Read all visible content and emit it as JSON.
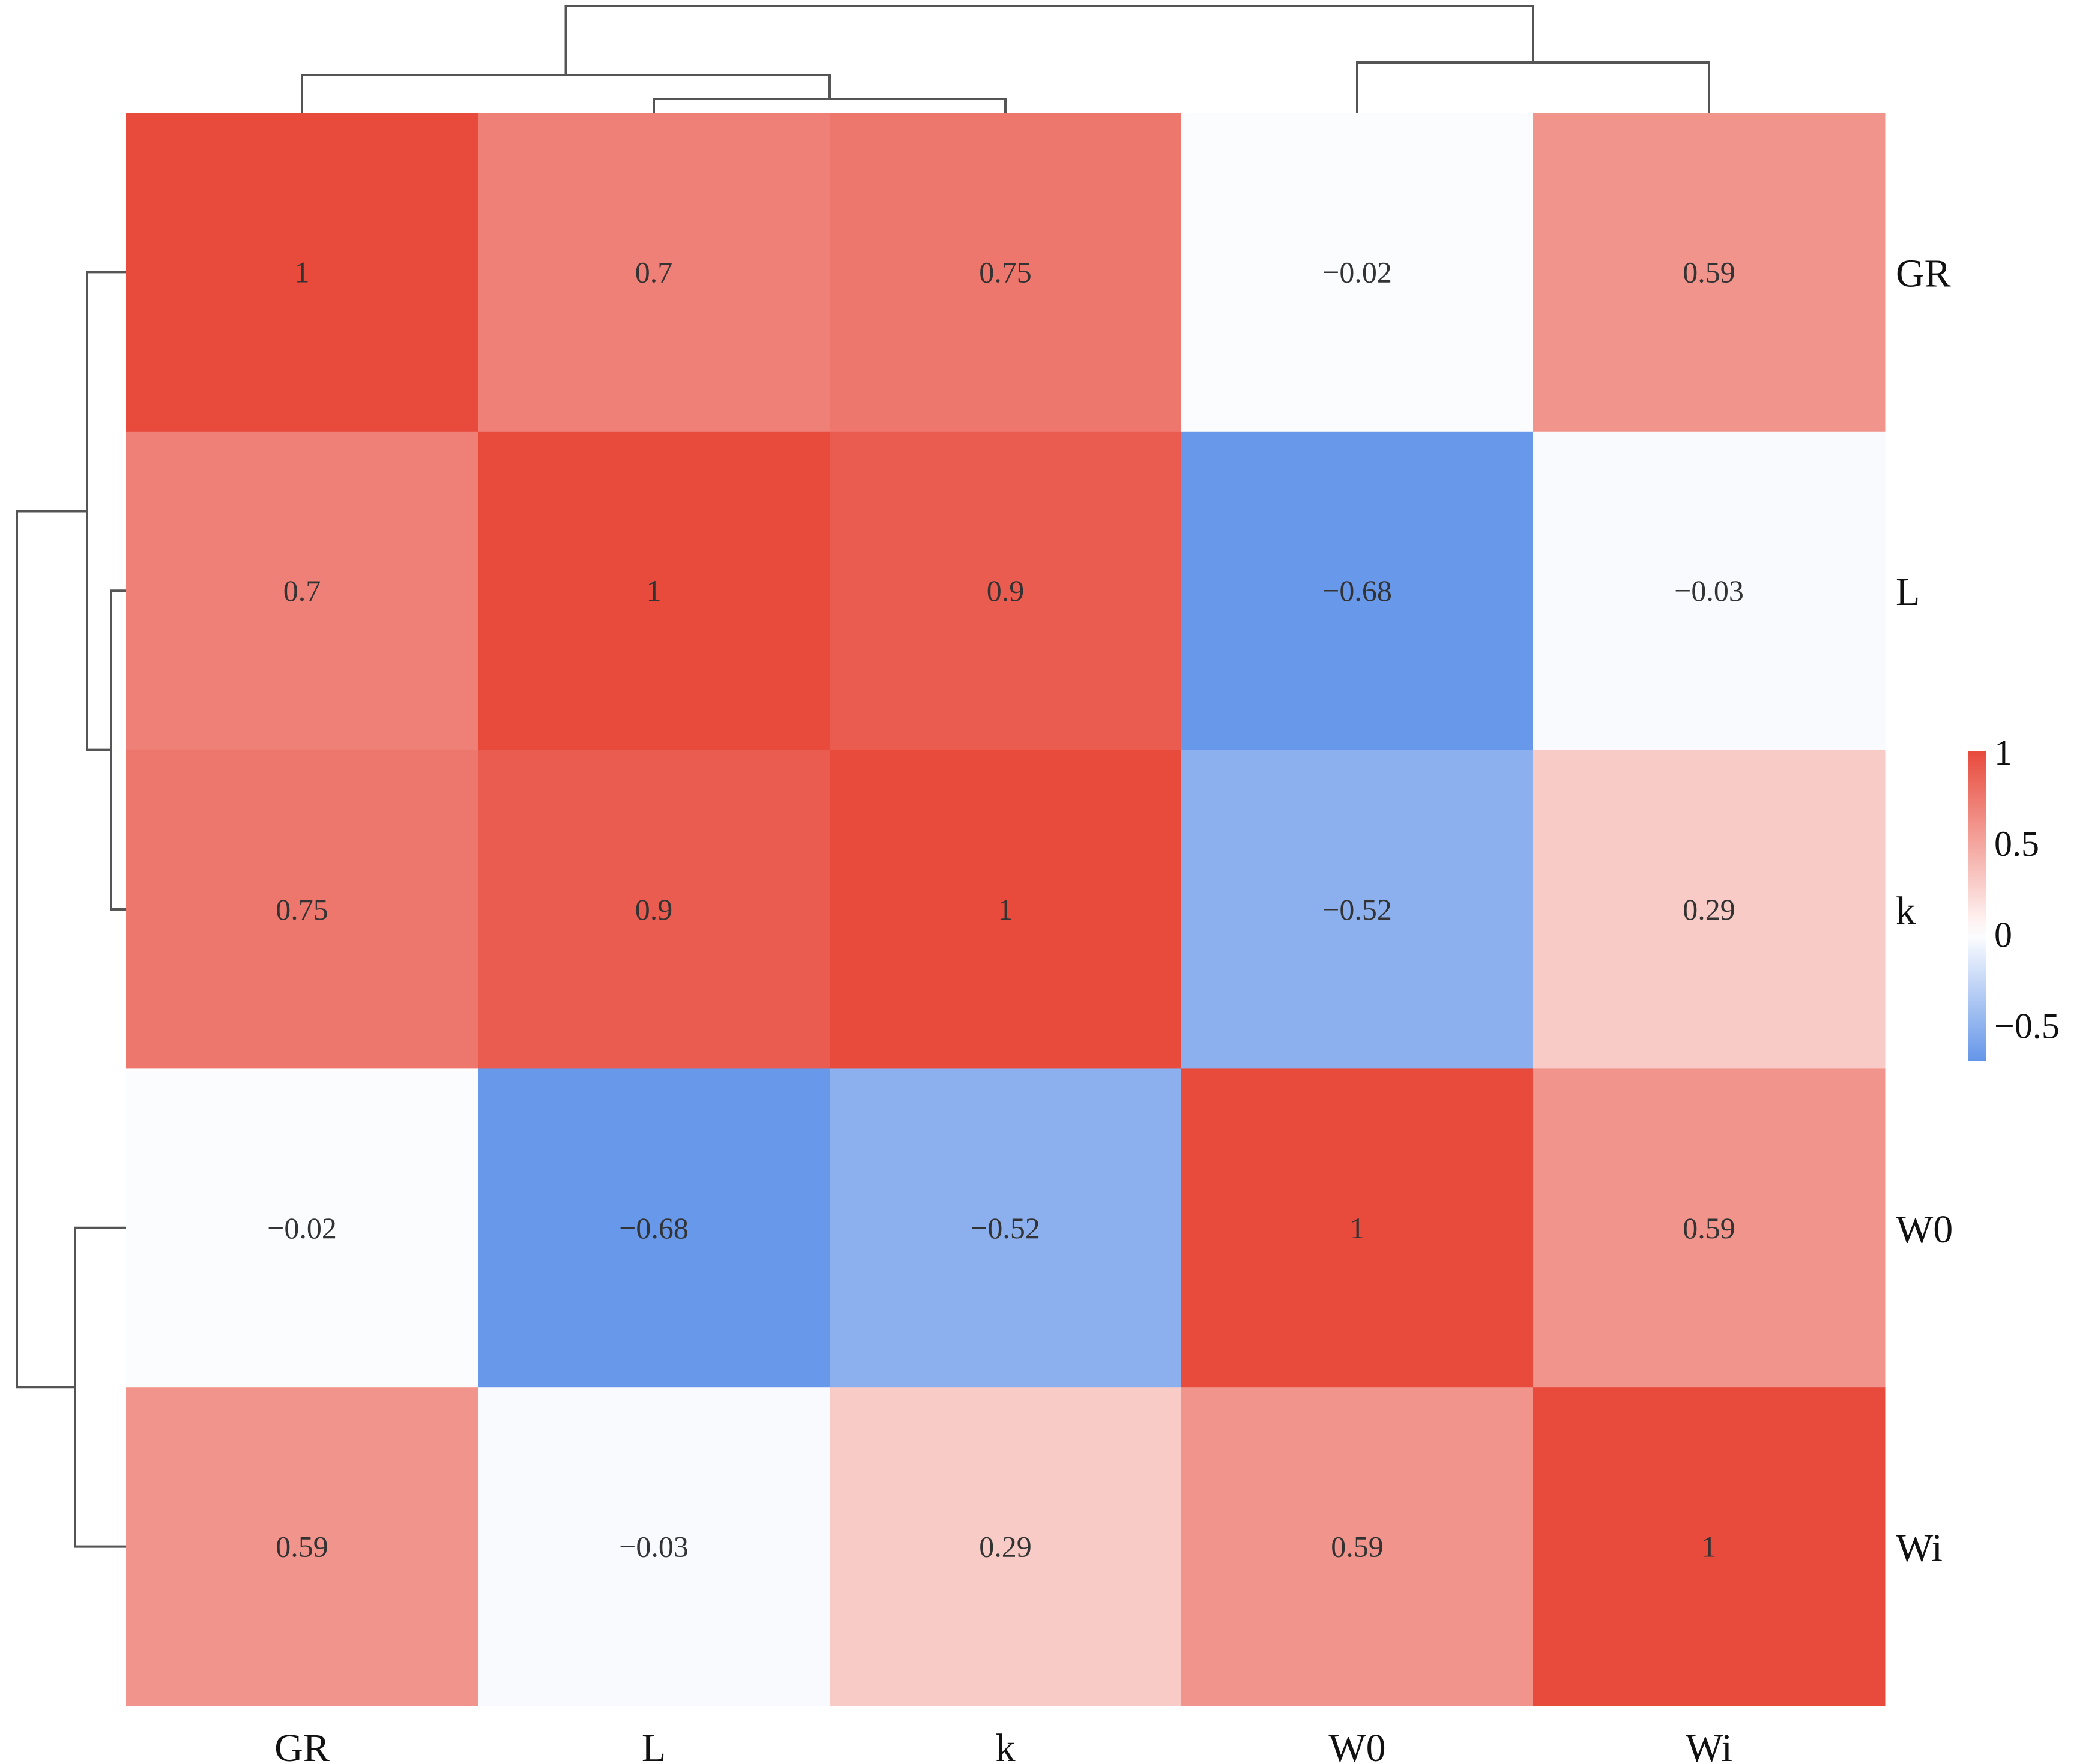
{
  "chart_data": {
    "type": "heatmap",
    "title": "",
    "xlabel": "",
    "ylabel": "",
    "columns": [
      "GR",
      "L",
      "k",
      "W0",
      "Wi"
    ],
    "rows": [
      "GR",
      "L",
      "k",
      "W0",
      "Wi"
    ],
    "values": [
      [
        1,
        0.7,
        0.75,
        -0.02,
        0.59
      ],
      [
        0.7,
        1,
        0.9,
        -0.68,
        -0.03
      ],
      [
        0.75,
        0.9,
        1,
        -0.52,
        0.29
      ],
      [
        -0.02,
        -0.68,
        -0.52,
        1,
        0.59
      ],
      [
        0.59,
        -0.03,
        0.29,
        0.59,
        1
      ]
    ],
    "cell_labels": [
      [
        "1",
        "0.7",
        "0.75",
        "−0.02",
        "0.59"
      ],
      [
        "0.7",
        "1",
        "0.9",
        "−0.68",
        "−0.03"
      ],
      [
        "0.75",
        "0.9",
        "1",
        "−0.52",
        "0.29"
      ],
      [
        "−0.02",
        "−0.68",
        "−0.52",
        "1",
        "0.59"
      ],
      [
        "0.59",
        "−0.03",
        "0.29",
        "0.59",
        "1"
      ]
    ],
    "value_range": [
      -0.7,
      1
    ],
    "colorscale": {
      "low": "#6495E8",
      "mid": "#FFFFFF",
      "high": "#E84A3C"
    },
    "legend": {
      "position": "right",
      "ticks": [
        1,
        0.5,
        0,
        -0.5
      ],
      "tick_labels": [
        "1",
        "0.5",
        "0",
        "−0.5"
      ]
    },
    "dendrograms": {
      "columns": true,
      "rows": true
    },
    "grid": false
  }
}
